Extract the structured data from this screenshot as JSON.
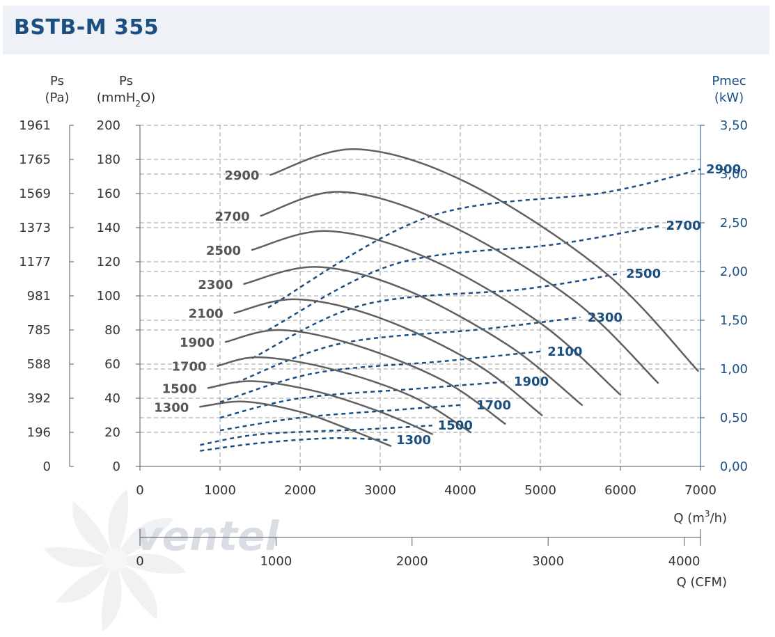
{
  "header": {
    "title": "BSTB-M 355"
  },
  "watermark": {
    "brand": "ventel"
  },
  "axes": {
    "left_pa_title": "Ps",
    "left_pa_unit": "(Pa)",
    "left_mm_title": "Ps",
    "left_mm_unit_pre": "(mmH",
    "left_mm_unit_sub": "2",
    "left_mm_unit_post": "O)",
    "right_title": "Pmec",
    "right_unit": "(kW)",
    "x_m3h_label_pre": "Q (m",
    "x_m3h_label_sup": "3",
    "x_m3h_label_post": "/h)",
    "x_cfm_label": "Q (CFM)"
  },
  "chart_data": {
    "type": "line",
    "title": "BSTB-M 355",
    "xlabel": "Q (m3/h)",
    "xlabel_secondary": "Q (CFM)",
    "ylabel": "Ps (mmH2O)",
    "ylabel_secondary": "Ps (Pa)",
    "y2label": "Pmec (kW)",
    "xlim": [
      0,
      7000
    ],
    "ylim": [
      0,
      200
    ],
    "y2lim": [
      0,
      3.5
    ],
    "cfm_lim": [
      0,
      4120
    ],
    "x_ticks": [
      "0",
      "1000",
      "2000",
      "3000",
      "4000",
      "5000",
      "6000",
      "7000"
    ],
    "y_ticks_mm": [
      "0",
      "20",
      "40",
      "60",
      "80",
      "100",
      "120",
      "140",
      "160",
      "180",
      "200"
    ],
    "y_ticks_pa": [
      "0",
      "196",
      "392",
      "588",
      "785",
      "981",
      "1177",
      "1373",
      "1569",
      "1765",
      "1961"
    ],
    "y2_ticks": [
      "0,00",
      "0,50",
      "1,00",
      "1,50",
      "2,00",
      "2,50",
      "3,00",
      "3,50"
    ],
    "cfm_ticks": [
      "0",
      "1000",
      "2000",
      "3000",
      "4000"
    ],
    "pressure_series": [
      {
        "name": "1300",
        "points": [
          [
            750,
            35
          ],
          [
            1300,
            38
          ],
          [
            2000,
            32
          ],
          [
            2600,
            22
          ],
          [
            3130,
            12
          ]
        ]
      },
      {
        "name": "1500",
        "points": [
          [
            850,
            46
          ],
          [
            1400,
            50
          ],
          [
            2200,
            44
          ],
          [
            3000,
            32
          ],
          [
            3650,
            19
          ]
        ]
      },
      {
        "name": "1700",
        "points": [
          [
            970,
            59
          ],
          [
            1500,
            64
          ],
          [
            2400,
            57
          ],
          [
            3400,
            41
          ],
          [
            4130,
            20
          ]
        ]
      },
      {
        "name": "1900",
        "points": [
          [
            1070,
            73
          ],
          [
            1750,
            80
          ],
          [
            2700,
            71
          ],
          [
            3800,
            50
          ],
          [
            4560,
            25
          ]
        ]
      },
      {
        "name": "2100",
        "points": [
          [
            1180,
            90
          ],
          [
            1950,
            98
          ],
          [
            3000,
            87
          ],
          [
            4200,
            60
          ],
          [
            5020,
            30
          ]
        ]
      },
      {
        "name": "2300",
        "points": [
          [
            1300,
            107
          ],
          [
            2200,
            117
          ],
          [
            3300,
            104
          ],
          [
            4600,
            71
          ],
          [
            5520,
            36
          ]
        ]
      },
      {
        "name": "2500",
        "points": [
          [
            1400,
            127
          ],
          [
            2350,
            138
          ],
          [
            3600,
            122
          ],
          [
            5000,
            84
          ],
          [
            6000,
            42
          ]
        ]
      },
      {
        "name": "2700",
        "points": [
          [
            1510,
            147
          ],
          [
            2500,
            161
          ],
          [
            3800,
            143
          ],
          [
            5400,
            98
          ],
          [
            6470,
            49
          ]
        ]
      },
      {
        "name": "2900",
        "points": [
          [
            1630,
            171
          ],
          [
            2700,
            186
          ],
          [
            4100,
            166
          ],
          [
            5800,
            114
          ],
          [
            6970,
            56
          ]
        ]
      }
    ],
    "power_series": [
      {
        "name": "1300",
        "points": [
          [
            750,
            0.16
          ],
          [
            1500,
            0.24
          ],
          [
            2400,
            0.29
          ],
          [
            3130,
            0.27
          ]
        ]
      },
      {
        "name": "1500",
        "points": [
          [
            750,
            0.22
          ],
          [
            1500,
            0.33
          ],
          [
            2800,
            0.38
          ],
          [
            3650,
            0.42
          ]
        ]
      },
      {
        "name": "1700",
        "points": [
          [
            1000,
            0.37
          ],
          [
            2000,
            0.5
          ],
          [
            3200,
            0.58
          ],
          [
            4000,
            0.63
          ]
        ]
      },
      {
        "name": "1900",
        "points": [
          [
            1000,
            0.5
          ],
          [
            2000,
            0.7
          ],
          [
            3500,
            0.8
          ],
          [
            4600,
            0.87
          ]
        ]
      },
      {
        "name": "2100",
        "points": [
          [
            1000,
            0.66
          ],
          [
            2200,
            0.96
          ],
          [
            3800,
            1.08
          ],
          [
            5000,
            1.18
          ]
        ]
      },
      {
        "name": "2300",
        "points": [
          [
            1200,
            0.86
          ],
          [
            2500,
            1.26
          ],
          [
            4300,
            1.41
          ],
          [
            5500,
            1.53
          ]
        ]
      },
      {
        "name": "2500",
        "points": [
          [
            1400,
            1.11
          ],
          [
            2800,
            1.66
          ],
          [
            4800,
            1.82
          ],
          [
            6000,
            1.98
          ]
        ]
      },
      {
        "name": "2700",
        "points": [
          [
            1600,
            1.4
          ],
          [
            3200,
            2.08
          ],
          [
            5200,
            2.28
          ],
          [
            6500,
            2.47
          ]
        ]
      },
      {
        "name": "2900",
        "points": [
          [
            1600,
            1.63
          ],
          [
            3600,
            2.56
          ],
          [
            5800,
            2.81
          ],
          [
            7000,
            3.05
          ]
        ]
      }
    ]
  }
}
